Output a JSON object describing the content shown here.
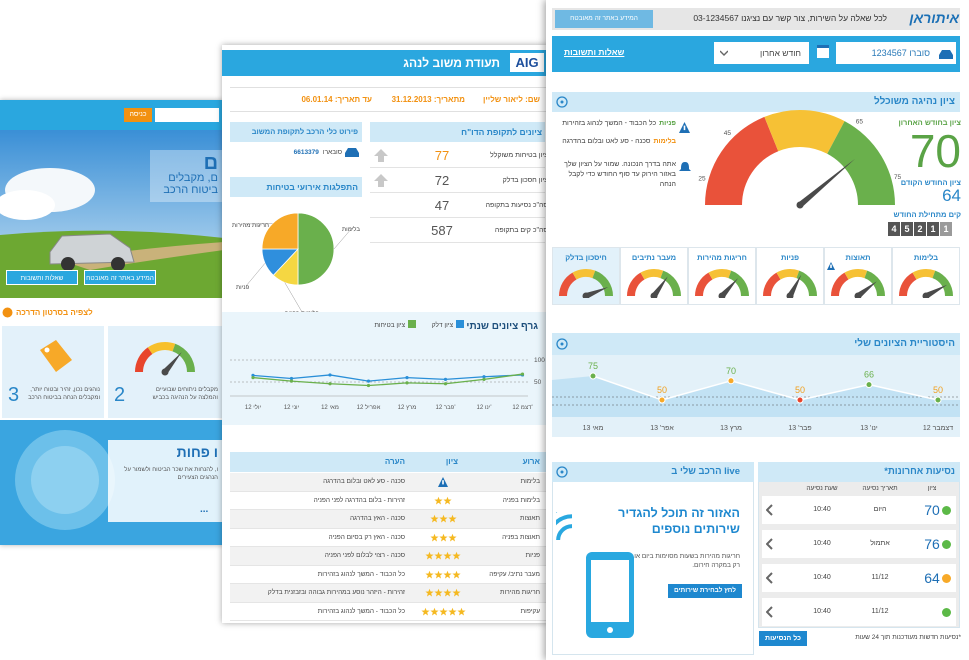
{
  "back": {
    "login": "כניסה",
    "hero": [
      "ם",
      "ם, מקבלים",
      "ביטוח הרכב"
    ],
    "faq": "שאלות ותשובות",
    "secure": "המידע באתר זה מאובטח",
    "video": "לצפיה בסרטון הדרכה",
    "cards": [
      {
        "number": "2",
        "text": "מקבלים ניתוחים שבועיים והמלצה על הנהיגה בכביש"
      },
      {
        "number": "3",
        "text": "נוהגים נכון, זהיר ובטוח יותר, ומקבלים הנחה בביטוח הרכב"
      }
    ],
    "promo_title": "ו פחות",
    "promo_text": "ו, להנחות את שכר הביטוח ולשמור על הנהגים הצעירים",
    "more": "..."
  },
  "report": {
    "logo": "AIG",
    "title": "תעודת משוב לנהג",
    "driver": "שם: ליאור שליין",
    "from": "מתאריך: 31.12.2013",
    "to": "עד תאריך: 06.01.14",
    "scores_title": "ציונים לתקופת הדו\"ח",
    "scores": [
      {
        "label": "ציון בטיחות משוקלל",
        "value": 77
      },
      {
        "label": "ציון חסכון בדלק",
        "value": 72
      },
      {
        "label": "סה\"כ נסיעות בתקופה",
        "value": 47
      },
      {
        "label": "סה\"כ קים בתקופה",
        "value": 587
      }
    ],
    "vehicles_title": "פירוט כלי הרכב לתקופת המשוב",
    "vehicle": {
      "model": "סובארו",
      "plate": "6613379"
    },
    "pie": {
      "type": "pie",
      "title": "התפלגות אירועי בטיחות",
      "categories": [
        "בלימות",
        "בלימות בפניה",
        "פניות",
        "חריגות מהירות"
      ],
      "values": [
        50,
        12,
        13,
        25
      ],
      "colors": [
        "#6ab04c",
        "#f5d742",
        "#2f8fdd",
        "#f7a928"
      ]
    },
    "annual": {
      "type": "line",
      "title": "גרף ציונים שנתי",
      "categories": [
        "12 יולי",
        "12 יוני",
        "12 מאי",
        "12 אפריל",
        "12 מרץ",
        "12 פבר'",
        "12 ינו'",
        "12 דצמ'"
      ],
      "series": [
        {
          "name": "ציון דלק",
          "color": "#2a8fd8",
          "values": [
            65,
            58,
            66,
            52,
            60,
            56,
            62,
            66
          ]
        },
        {
          "name": "ציון בטיחות",
          "color": "#6ab04c",
          "values": [
            60,
            52,
            46,
            42,
            48,
            46,
            56,
            68
          ]
        }
      ],
      "ylim": [
        25,
        105
      ],
      "yticks": [
        50,
        100
      ],
      "grid": true
    },
    "table": {
      "headers": [
        "ארוע",
        "ציון",
        "הערה"
      ],
      "rows": [
        {
          "event": "בלימות",
          "stars": null,
          "note": "סכנה - סע לאט ובלום בהדרגה"
        },
        {
          "event": "בלימות בפניה",
          "stars": 2,
          "note": "זהירות - בלום בהדרגה לפני הפניה"
        },
        {
          "event": "תאוצות",
          "stars": 3,
          "note": "סכנה - האץ בהדרגה"
        },
        {
          "event": "תאוצות בפניה",
          "stars": 3,
          "note": "סכנה - האץ רק בסיום הפניה"
        },
        {
          "event": "פניות",
          "stars": 4,
          "note": "סכנה - רצוי לבלום לפני הפניה"
        },
        {
          "event": "מעבר נתיב/ עקיפה",
          "stars": 4,
          "note": "כל הכבוד - המשך לנהוג בזהירות"
        },
        {
          "event": "חריגות מהירות",
          "stars": 4,
          "note": "זהירות - היזהר נוסע במהירות גבוהה ובזבזנית בדלק"
        },
        {
          "event": "עקיפות",
          "stars": 5,
          "note": "כל הכבוד - המשך לנהוג בזהירות"
        }
      ]
    }
  },
  "dashboard": {
    "logo": "איתוראן",
    "contact": "לכל שאלה על השירות, צור קשר עם נציגנו 03-1234567",
    "secure": "המידע באתר זה מאובטח",
    "vehicle": "סוברו 1234567",
    "period": "חודש אחרון",
    "faq": "שאלות ותשובות",
    "score_title": "ציון נהיגה משוכלל",
    "messages": [
      {
        "label": "פניות",
        "text": "כל הכבוד - המשך לנהוג בזהירות",
        "color": "#5aa346"
      },
      {
        "label": "בלימות",
        "text": "סכנה - סע לאט ובלום בהדרגה",
        "color": "#f29111"
      }
    ],
    "tip": "אתה בדרך הנכונה. שמור על הציון שלך באזור הירוק עד סוף החודש כדי לקבל הנחה",
    "gauge_labels": [
      25,
      45,
      65,
      75
    ],
    "last_label": "ציון בחודש האחרון",
    "last": 70,
    "prev_label": "ציון החודש הקודם",
    "prev": 64,
    "km_label": "קים מתחילת החודש",
    "km_digits": [
      "4",
      "5",
      "2",
      "1",
      "1"
    ],
    "categories": [
      "בלימות",
      "תאוצות",
      "פניות",
      "חריגות מהירות",
      "מעבר נתיבים",
      "חיסכון בדלק"
    ],
    "history": {
      "type": "line",
      "title": "היסטוריית הציונים שלי",
      "categories": [
        "דצמבר 12",
        "ינו' 13",
        "פבר' 13",
        "מרץ 13",
        "אפר' 13",
        "מאי 13"
      ],
      "values": [
        50,
        66,
        50,
        70,
        50,
        75
      ],
      "point_colors": [
        "#6ab04c",
        "#6ab04c",
        "#e8452c",
        "#f7a928",
        "#f7a928",
        "#6ab04c"
      ]
    },
    "live": {
      "title": "הרכב שלי ב live",
      "headline": "האזור זה תוכל להגדיר שירותים נוספים",
      "text": "חריגות מהירות בשעות מסוימות ביום או רק במקרה חירום.",
      "button": "לחץ לבחירת שירותים"
    },
    "trips": {
      "title": "נסיעות אחרונות*",
      "headers": [
        "ציון",
        "תאריך נסיעה",
        "שעת נסיעה"
      ],
      "rows": [
        {
          "score": 70,
          "date": "היום",
          "time": "10:40",
          "color": "#5cb947"
        },
        {
          "score": 76,
          "date": "אתמול",
          "time": "10:40",
          "color": "#5cb947"
        },
        {
          "score": 64,
          "date": "11/12",
          "time": "10:40",
          "color": "#f7a928"
        },
        {
          "score": null,
          "date": "11/12",
          "time": "10:40",
          "color": "#5cb947"
        }
      ],
      "button": "כל הנסיעות",
      "note": "*נסיעות חדשות מעודכנות תוך 24 שעות"
    }
  }
}
